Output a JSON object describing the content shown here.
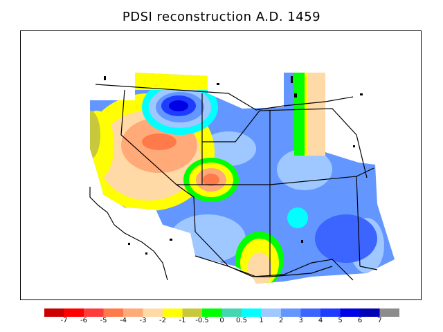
{
  "title": "PDSI reconstruction A.D. 1459",
  "colorbar": {
    "colors": [
      "#cc0000",
      "#ff0000",
      "#ff3b3b",
      "#ff7a4a",
      "#ffaa78",
      "#ffd9a6",
      "#ffff00",
      "#c8c83c",
      "#00ff00",
      "#44d6b0",
      "#00ffff",
      "#9ec8ff",
      "#6496ff",
      "#3c64ff",
      "#1e3cff",
      "#0000e6",
      "#0000b4",
      "#8c8c8c"
    ],
    "tick_labels": [
      "-7",
      "-6",
      "-5",
      "-4",
      "-3",
      "-2",
      "-1",
      "-0.5",
      "0",
      "0.5",
      "1",
      "2",
      "3",
      "4",
      "5",
      "6",
      "7"
    ]
  },
  "palette": {
    "frame": "#000000",
    "borders": "#000000",
    "background": "#ffffff"
  }
}
